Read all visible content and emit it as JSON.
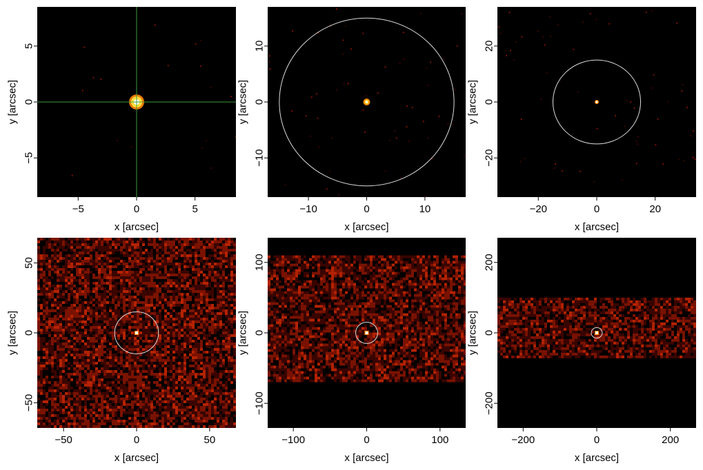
{
  "colors": {
    "plot_background": "#000000",
    "noise_dark": "#3a0500",
    "noise_mid": "#7a1200",
    "noise_bright": "#b52200",
    "source_core": "#ffffff",
    "source_glow": "#ffe040",
    "source_halo": "#ff8800",
    "circle_stroke": "#dddddd",
    "crosshair": "#3a9a3a"
  },
  "chart_data": [
    {
      "type": "heatmap",
      "xlabel": "x [arcsec]",
      "ylabel": "y [arcsec]",
      "xlim": [
        -8.5,
        8.5
      ],
      "ylim": [
        -8.5,
        8.5
      ],
      "xticks": [
        {
          "value": -5,
          "label": "−5"
        },
        {
          "value": 0,
          "label": "0"
        },
        {
          "value": 5,
          "label": "5"
        }
      ],
      "yticks": [
        {
          "value": -5,
          "label": "−5"
        },
        {
          "value": 0,
          "label": "0"
        },
        {
          "value": 5,
          "label": "5"
        }
      ],
      "source": {
        "x": 0,
        "y": 0
      },
      "crosshair": {
        "x": 0,
        "y": 0
      },
      "noise_band": null
    },
    {
      "type": "heatmap",
      "xlabel": "x [arcsec]",
      "ylabel": "y [arcsec]",
      "xlim": [
        -17,
        17
      ],
      "ylim": [
        -17,
        17
      ],
      "xticks": [
        {
          "value": -10,
          "label": "−10"
        },
        {
          "value": 0,
          "label": "0"
        },
        {
          "value": 10,
          "label": "10"
        }
      ],
      "yticks": [
        {
          "value": -10,
          "label": "−10"
        },
        {
          "value": 0,
          "label": "0"
        },
        {
          "value": 10,
          "label": "10"
        }
      ],
      "source": {
        "x": 0,
        "y": 0
      },
      "circle": {
        "x": 0,
        "y": 0,
        "r": 15
      },
      "noise_band": null
    },
    {
      "type": "heatmap",
      "xlabel": "x [arcsec]",
      "ylabel": "y [arcsec]",
      "xlim": [
        -34,
        34
      ],
      "ylim": [
        -34,
        34
      ],
      "xticks": [
        {
          "value": -20,
          "label": "−20"
        },
        {
          "value": 0,
          "label": "0"
        },
        {
          "value": 20,
          "label": "20"
        }
      ],
      "yticks": [
        {
          "value": -20,
          "label": "−20"
        },
        {
          "value": 0,
          "label": "0"
        },
        {
          "value": 20,
          "label": "20"
        }
      ],
      "source": {
        "x": 0,
        "y": 0
      },
      "circle": {
        "x": 0,
        "y": 0,
        "r": 15
      },
      "noise_band": null
    },
    {
      "type": "heatmap",
      "xlabel": "x [arcsec]",
      "ylabel": "y [arcsec]",
      "xlim": [
        -68,
        68
      ],
      "ylim": [
        -68,
        68
      ],
      "xticks": [
        {
          "value": -50,
          "label": "−50"
        },
        {
          "value": 0,
          "label": "0"
        },
        {
          "value": 50,
          "label": "50"
        }
      ],
      "yticks": [
        {
          "value": -50,
          "label": "−50"
        },
        {
          "value": 0,
          "label": "0"
        },
        {
          "value": 50,
          "label": "50"
        }
      ],
      "source": {
        "x": 0,
        "y": 0
      },
      "circle": {
        "x": 0,
        "y": 0,
        "r": 15
      },
      "noise_band": {
        "ymin": -68,
        "ymax": 68
      }
    },
    {
      "type": "heatmap",
      "xlabel": "x [arcsec]",
      "ylabel": "y [arcsec]",
      "xlim": [
        -135,
        135
      ],
      "ylim": [
        -135,
        135
      ],
      "xticks": [
        {
          "value": -100,
          "label": "−100"
        },
        {
          "value": 0,
          "label": "0"
        },
        {
          "value": 100,
          "label": "100"
        }
      ],
      "yticks": [
        {
          "value": -100,
          "label": "−100"
        },
        {
          "value": 0,
          "label": "0"
        },
        {
          "value": 100,
          "label": "100"
        }
      ],
      "source": {
        "x": 0,
        "y": 0
      },
      "circle": {
        "x": 0,
        "y": 0,
        "r": 15
      },
      "noise_band": {
        "ymin": -70,
        "ymax": 110
      }
    },
    {
      "type": "heatmap",
      "xlabel": "x [arcsec]",
      "ylabel": "y [arcsec]",
      "xlim": [
        -270,
        270
      ],
      "ylim": [
        -270,
        270
      ],
      "xticks": [
        {
          "value": -200,
          "label": "−200"
        },
        {
          "value": 0,
          "label": "0"
        },
        {
          "value": 200,
          "label": "200"
        }
      ],
      "yticks": [
        {
          "value": -200,
          "label": "−200"
        },
        {
          "value": 0,
          "label": "0"
        },
        {
          "value": 200,
          "label": "200"
        }
      ],
      "source": {
        "x": 0,
        "y": 0
      },
      "circle": {
        "x": 0,
        "y": 0,
        "r": 15
      },
      "noise_band": {
        "ymin": -65,
        "ymax": 100
      }
    }
  ]
}
